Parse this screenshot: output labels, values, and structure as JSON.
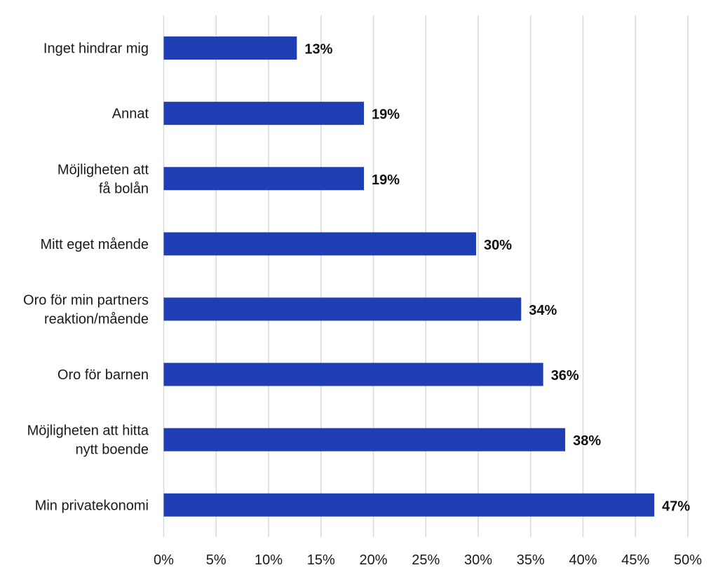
{
  "colors": {
    "bar": "#1f3eb4",
    "grid": "#d9d9d9",
    "text": "#1a1a1a"
  },
  "chart_data": {
    "type": "bar",
    "orientation": "horizontal",
    "title": "",
    "xlabel": "",
    "ylabel": "",
    "categories": [
      [
        "Inget hindrar mig"
      ],
      [
        "Annat"
      ],
      [
        "Möjligheten att",
        "få bolån"
      ],
      [
        "Mitt eget mående"
      ],
      [
        "Oro för min partners",
        "reaktion/mående"
      ],
      [
        "Oro för barnen"
      ],
      [
        "Möjligheten att hitta",
        "nytt boende"
      ],
      [
        "Min privatekonomi"
      ]
    ],
    "values": [
      12.7,
      19.1,
      19.1,
      29.8,
      34.1,
      36.2,
      38.3,
      46.8
    ],
    "value_labels": [
      "13%",
      "19%",
      "19%",
      "30%",
      "34%",
      "36%",
      "38%",
      "47%"
    ],
    "xlim": [
      0,
      50
    ],
    "xticks": [
      0,
      5,
      10,
      15,
      20,
      25,
      30,
      35,
      40,
      45,
      50
    ],
    "xtick_labels": [
      "0%",
      "5%",
      "10%",
      "15%",
      "20%",
      "25%",
      "30%",
      "35%",
      "40%",
      "45%",
      "50%"
    ],
    "grid": "vertical",
    "legend": "none"
  }
}
